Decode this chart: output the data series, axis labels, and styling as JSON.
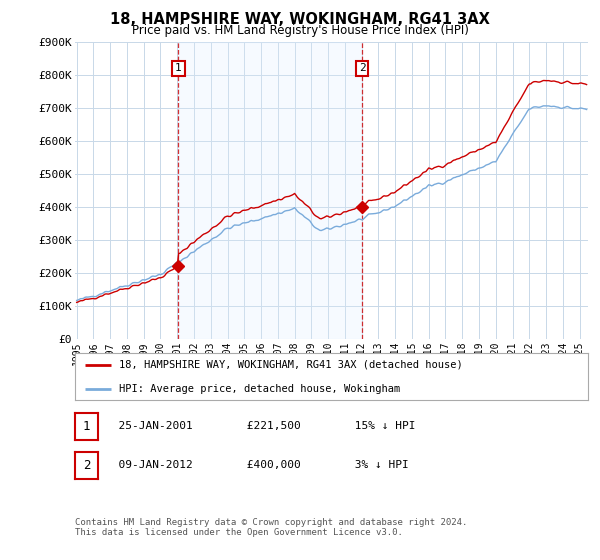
{
  "title": "18, HAMPSHIRE WAY, WOKINGHAM, RG41 3AX",
  "subtitle": "Price paid vs. HM Land Registry's House Price Index (HPI)",
  "legend_line1": "18, HAMPSHIRE WAY, WOKINGHAM, RG41 3AX (detached house)",
  "legend_line2": "HPI: Average price, detached house, Wokingham",
  "table_row1": [
    "1",
    "25-JAN-2001",
    "£221,500",
    "15% ↓ HPI"
  ],
  "table_row2": [
    "2",
    "09-JAN-2012",
    "£400,000",
    "3% ↓ HPI"
  ],
  "footnote": "Contains HM Land Registry data © Crown copyright and database right 2024.\nThis data is licensed under the Open Government Licence v3.0.",
  "sale1_year": 2001.07,
  "sale1_price": 221500,
  "sale2_year": 2012.03,
  "sale2_price": 400000,
  "hpi_color": "#7aabdb",
  "price_color": "#cc0000",
  "shade_color": "#ddeeff",
  "vline_color": "#cc0000",
  "label_box_color": "#cc0000",
  "background_color": "#ffffff",
  "grid_color": "#c8d8e8",
  "ylim": [
    0,
    900000
  ],
  "yticks": [
    0,
    100000,
    200000,
    300000,
    400000,
    500000,
    600000,
    700000,
    800000,
    900000
  ],
  "ytick_labels": [
    "£0",
    "£100K",
    "£200K",
    "£300K",
    "£400K",
    "£500K",
    "£600K",
    "£700K",
    "£800K",
    "£900K"
  ],
  "xlim_start": 1994.9,
  "xlim_end": 2025.5
}
